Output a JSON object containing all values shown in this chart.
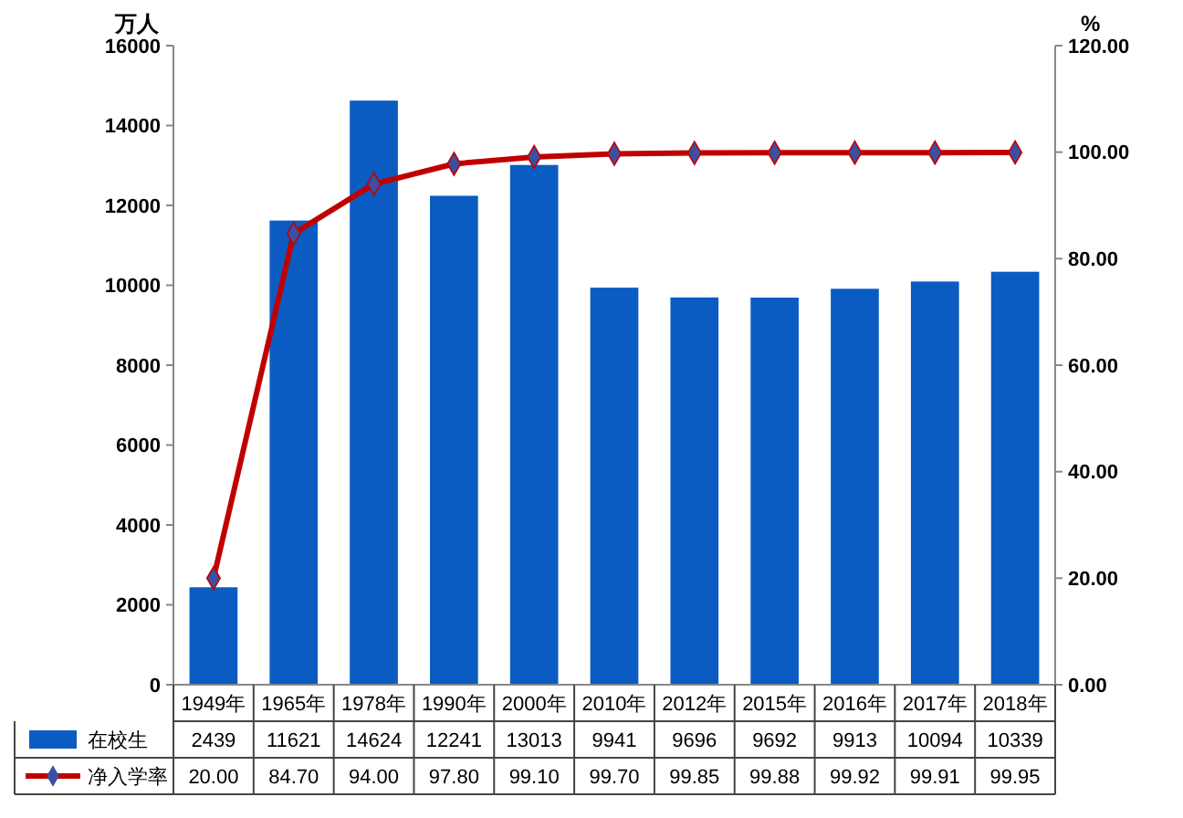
{
  "chart_data": {
    "type": "bar",
    "ylabel": "万人",
    "y2label": "%",
    "categories": [
      "1949年",
      "1965年",
      "1978年",
      "1990年",
      "2000年",
      "2010年",
      "2012年",
      "2015年",
      "2016年",
      "2017年",
      "2018年"
    ],
    "series": [
      {
        "name": "在校生",
        "color": "#0a5cc2",
        "values": [
          2439,
          11621,
          14624,
          12241,
          13013,
          9941,
          9696,
          9692,
          9913,
          10094,
          10339
        ],
        "value_labels": [
          "2439",
          "11621",
          "14624",
          "12241",
          "13013",
          "9941",
          "9696",
          "9692",
          "9913",
          "10094",
          "10339"
        ]
      },
      {
        "name": "净入学率",
        "type": "line",
        "axis": "y2",
        "color": "#c00000",
        "marker": "diamond",
        "values": [
          20.0,
          84.7,
          94.0,
          97.8,
          99.1,
          99.7,
          99.85,
          99.88,
          99.92,
          99.91,
          99.95
        ],
        "value_labels": [
          "20.00",
          "84.70",
          "94.00",
          "97.80",
          "99.10",
          "99.70",
          "99.85",
          "99.88",
          "99.92",
          "99.91",
          "99.95"
        ]
      }
    ],
    "ylim": [
      0,
      16000
    ],
    "yticks": [
      0,
      2000,
      4000,
      6000,
      8000,
      10000,
      12000,
      14000,
      16000
    ],
    "y2lim": [
      0,
      120
    ],
    "y2ticks": [
      {
        "value": 0,
        "label": "0.00"
      },
      {
        "value": 20,
        "label": "20.00"
      },
      {
        "value": 40,
        "label": "40.00"
      },
      {
        "value": 60,
        "label": "60.00"
      },
      {
        "value": 80,
        "label": "80.00"
      },
      {
        "value": 100,
        "label": "100.00"
      },
      {
        "value": 120,
        "label": "120.00"
      }
    ],
    "legend": "bottom"
  }
}
